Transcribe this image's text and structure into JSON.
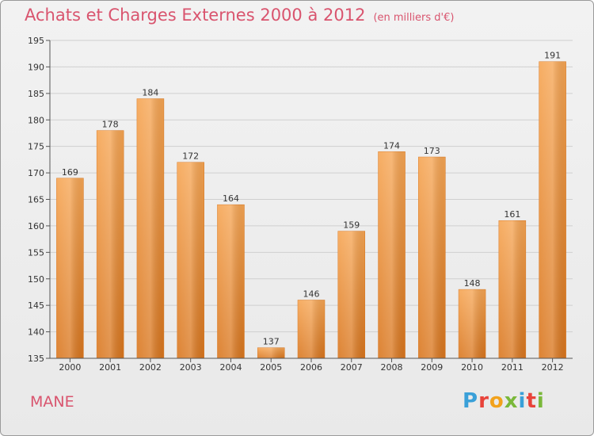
{
  "header": {
    "title": "Achats et Charges Externes 2000 à 2012",
    "subtitle": "(en milliers d'€)"
  },
  "footer": {
    "place": "MANE",
    "logo": "Proxiti",
    "logo_colors": [
      "#3aa0d8",
      "#e8433a",
      "#f2a21c",
      "#7ab83a",
      "#3aa0d8",
      "#e8433a",
      "#7ab83a"
    ]
  },
  "colors": {
    "bar_top": "#f6a553",
    "bar_bottom": "#d9761e",
    "accent": "#d9546e"
  },
  "chart_data": {
    "type": "bar",
    "categories": [
      "2000",
      "2001",
      "2002",
      "2003",
      "2004",
      "2005",
      "2006",
      "2007",
      "2008",
      "2009",
      "2010",
      "2011",
      "2012"
    ],
    "values": [
      169,
      178,
      184,
      172,
      164,
      137,
      146,
      159,
      174,
      173,
      148,
      161,
      191
    ],
    "ylim": [
      135,
      195
    ],
    "yticks": [
      135,
      140,
      145,
      150,
      155,
      160,
      165,
      170,
      175,
      180,
      185,
      190,
      195
    ],
    "grid": true
  }
}
